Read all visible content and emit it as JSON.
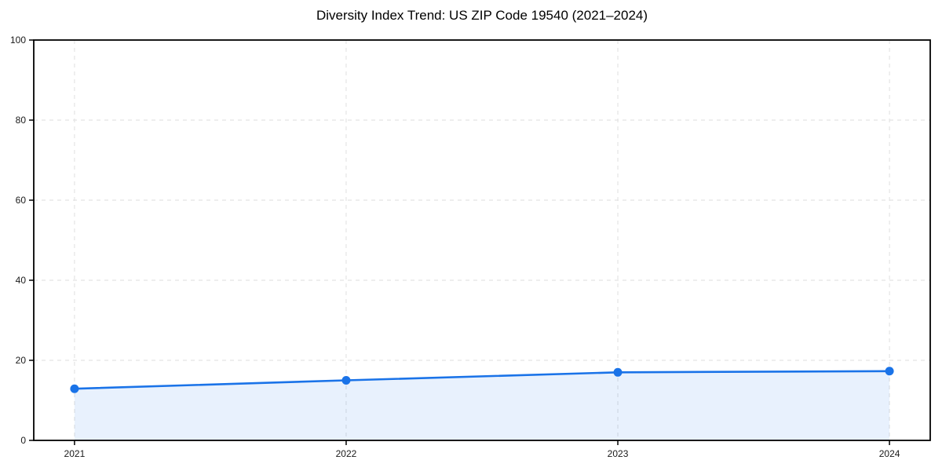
{
  "chart": {
    "title": "Diversity Index Trend: US ZIP Code 19540 (2021–2024)"
  },
  "chart_data": {
    "type": "line",
    "title": "Diversity Index Trend: US ZIP Code 19540 (2021–2024)",
    "series_name": "Diversity Index",
    "categories": [
      "2021",
      "2022",
      "2023",
      "2024"
    ],
    "x": [
      2021,
      2022,
      2023,
      2024
    ],
    "values": [
      12.9,
      15.0,
      17.0,
      17.3
    ],
    "xlabel": "",
    "ylabel": "",
    "xlim": [
      2020.85,
      2024.15
    ],
    "ylim": [
      0,
      100
    ],
    "yticks": [
      0,
      20,
      40,
      60,
      80,
      100
    ],
    "xticks": [
      2021,
      2022,
      2023,
      2024
    ],
    "grid": true,
    "grid_style": "dashed",
    "legend": false,
    "area_fill": true,
    "colors": {
      "line": "#1a73e8",
      "marker": "#1a73e8",
      "fill": "rgba(26,115,232,0.10)",
      "grid": "#e4e4e4",
      "spine": "#000000",
      "tick_label": "#1a1a1a",
      "title": "#000000",
      "background": "#ffffff"
    }
  }
}
